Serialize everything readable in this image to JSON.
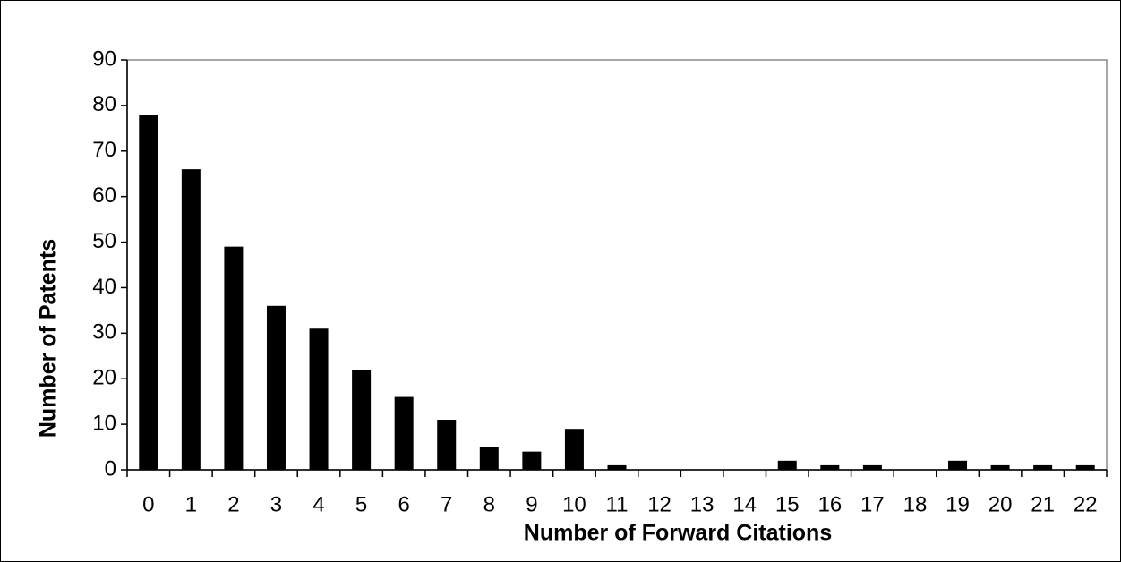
{
  "chart_data": {
    "type": "bar",
    "x_label": "Number of Forward Citations",
    "y_label": "Number of Patents",
    "categories": [
      "0",
      "1",
      "2",
      "3",
      "4",
      "5",
      "6",
      "7",
      "8",
      "9",
      "10",
      "11",
      "12",
      "13",
      "14",
      "15",
      "16",
      "17",
      "18",
      "19",
      "20",
      "21",
      "22"
    ],
    "values": [
      78,
      66,
      49,
      36,
      31,
      22,
      16,
      11,
      5,
      4,
      9,
      1,
      0,
      0,
      0,
      2,
      1,
      1,
      0,
      2,
      1,
      1,
      1
    ],
    "color": "#000000",
    "ylim": [
      0,
      90
    ],
    "yticks": [
      0,
      10,
      20,
      30,
      40,
      50,
      60,
      70,
      80,
      90
    ],
    "grid": false
  }
}
